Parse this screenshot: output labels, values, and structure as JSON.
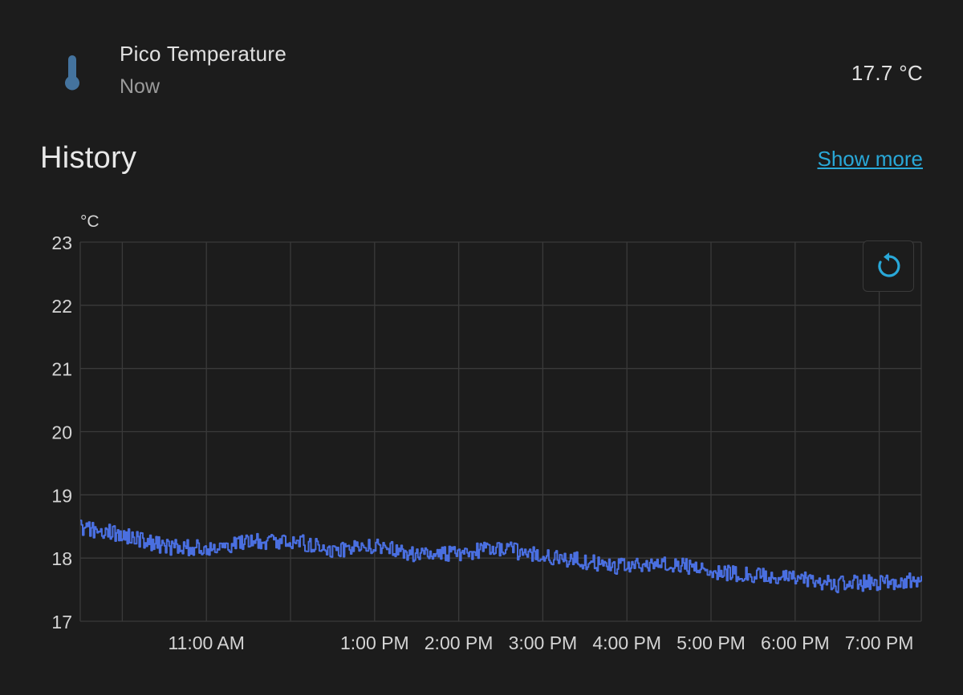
{
  "entity": {
    "name": "Pico Temperature",
    "time": "Now",
    "value": "17.7 °C",
    "icon": "thermometer-icon",
    "icon_color": "#44739e"
  },
  "history": {
    "title": "History",
    "show_more": "Show more"
  },
  "colors": {
    "background": "#1c1c1c",
    "line": "#4a6fe0",
    "grid": "#3a3a3a",
    "link": "#29a8d8",
    "reset_icon": "#29a8d8"
  },
  "chart_data": {
    "type": "line",
    "ylabel": "°C",
    "ylim": [
      17,
      23
    ],
    "yticks": [
      17,
      18,
      19,
      20,
      21,
      22,
      23
    ],
    "xrange": [
      "9:30 AM",
      "7:30 PM"
    ],
    "xticks": [
      "11:00 AM",
      "1:00 PM",
      "2:00 PM",
      "3:00 PM",
      "4:00 PM",
      "5:00 PM",
      "6:00 PM",
      "7:00 PM"
    ],
    "grid": true,
    "series": [
      {
        "color": "#4a6fe0",
        "noise_amplitude": 0.13,
        "trend": [
          [
            "9:30 AM",
            18.48
          ],
          [
            "10:00 AM",
            18.38
          ],
          [
            "10:30 AM",
            18.18
          ],
          [
            "11:00 AM",
            18.15
          ],
          [
            "11:30 AM",
            18.25
          ],
          [
            "12:00 PM",
            18.28
          ],
          [
            "12:30 PM",
            18.12
          ],
          [
            "1:00 PM",
            18.18
          ],
          [
            "1:30 PM",
            18.05
          ],
          [
            "2:00 PM",
            18.08
          ],
          [
            "2:30 PM",
            18.15
          ],
          [
            "3:00 PM",
            18.02
          ],
          [
            "3:30 PM",
            17.95
          ],
          [
            "4:00 PM",
            17.85
          ],
          [
            "4:30 PM",
            17.92
          ],
          [
            "5:00 PM",
            17.8
          ],
          [
            "5:30 PM",
            17.72
          ],
          [
            "6:00 PM",
            17.68
          ],
          [
            "6:30 PM",
            17.58
          ],
          [
            "7:00 PM",
            17.62
          ],
          [
            "7:30 PM",
            17.65
          ]
        ]
      }
    ]
  }
}
